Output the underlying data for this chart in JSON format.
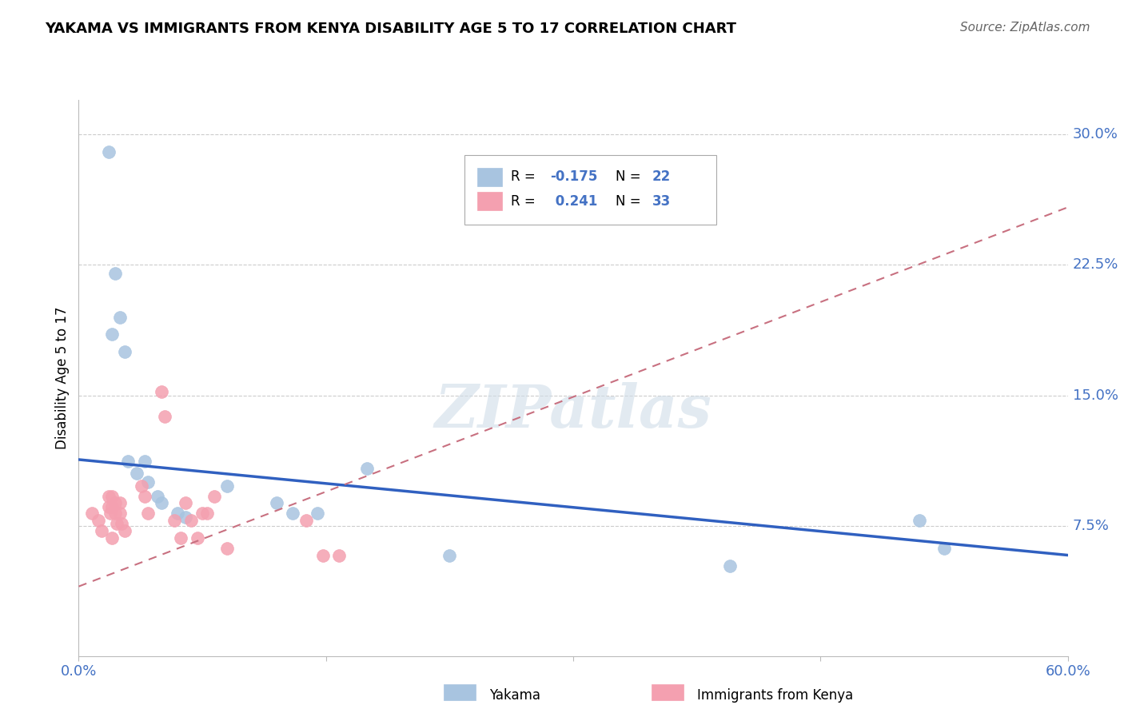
{
  "title": "YAKAMA VS IMMIGRANTS FROM KENYA DISABILITY AGE 5 TO 17 CORRELATION CHART",
  "source": "Source: ZipAtlas.com",
  "ylabel": "Disability Age 5 to 17",
  "legend_labels": [
    "Yakama",
    "Immigrants from Kenya"
  ],
  "r_yakama": -0.175,
  "n_yakama": 22,
  "r_kenya": 0.241,
  "n_kenya": 33,
  "color_yakama": "#a8c4e0",
  "color_kenya": "#f4a0b0",
  "color_blue": "#4472c4",
  "line_blue": "#3060c0",
  "line_pink": "#c87080",
  "xmin": 0.0,
  "xmax": 0.6,
  "ymin": 0.0,
  "ymax": 0.32,
  "xtick_vals": [
    0.0,
    0.15,
    0.3,
    0.45,
    0.6
  ],
  "xtick_labels": [
    "0.0%",
    "",
    "",
    "",
    "60.0%"
  ],
  "ytick_labels_right": [
    "7.5%",
    "15.0%",
    "22.5%",
    "30.0%"
  ],
  "ytick_vals_right": [
    0.075,
    0.15,
    0.225,
    0.3
  ],
  "background_color": "#ffffff",
  "watermark": "ZIPatlas",
  "yakama_x": [
    0.018,
    0.02,
    0.022,
    0.025,
    0.028,
    0.03,
    0.035,
    0.04,
    0.042,
    0.048,
    0.05,
    0.06,
    0.065,
    0.09,
    0.12,
    0.13,
    0.145,
    0.175,
    0.225,
    0.395,
    0.51,
    0.525
  ],
  "yakama_y": [
    0.29,
    0.185,
    0.22,
    0.195,
    0.175,
    0.112,
    0.105,
    0.112,
    0.1,
    0.092,
    0.088,
    0.082,
    0.08,
    0.098,
    0.088,
    0.082,
    0.082,
    0.108,
    0.058,
    0.052,
    0.078,
    0.062
  ],
  "kenya_x": [
    0.008,
    0.012,
    0.014,
    0.018,
    0.018,
    0.019,
    0.02,
    0.02,
    0.02,
    0.022,
    0.022,
    0.023,
    0.025,
    0.025,
    0.026,
    0.028,
    0.038,
    0.04,
    0.042,
    0.05,
    0.052,
    0.058,
    0.062,
    0.065,
    0.068,
    0.072,
    0.075,
    0.078,
    0.082,
    0.09,
    0.138,
    0.148,
    0.158
  ],
  "kenya_y": [
    0.082,
    0.078,
    0.072,
    0.092,
    0.086,
    0.082,
    0.092,
    0.086,
    0.068,
    0.088,
    0.082,
    0.076,
    0.088,
    0.082,
    0.076,
    0.072,
    0.098,
    0.092,
    0.082,
    0.152,
    0.138,
    0.078,
    0.068,
    0.088,
    0.078,
    0.068,
    0.082,
    0.082,
    0.092,
    0.062,
    0.078,
    0.058,
    0.058
  ],
  "blue_line_x": [
    0.0,
    0.6
  ],
  "blue_line_y": [
    0.113,
    0.058
  ],
  "pink_line_x": [
    0.0,
    0.165
  ],
  "pink_line_y": [
    0.04,
    0.1
  ]
}
